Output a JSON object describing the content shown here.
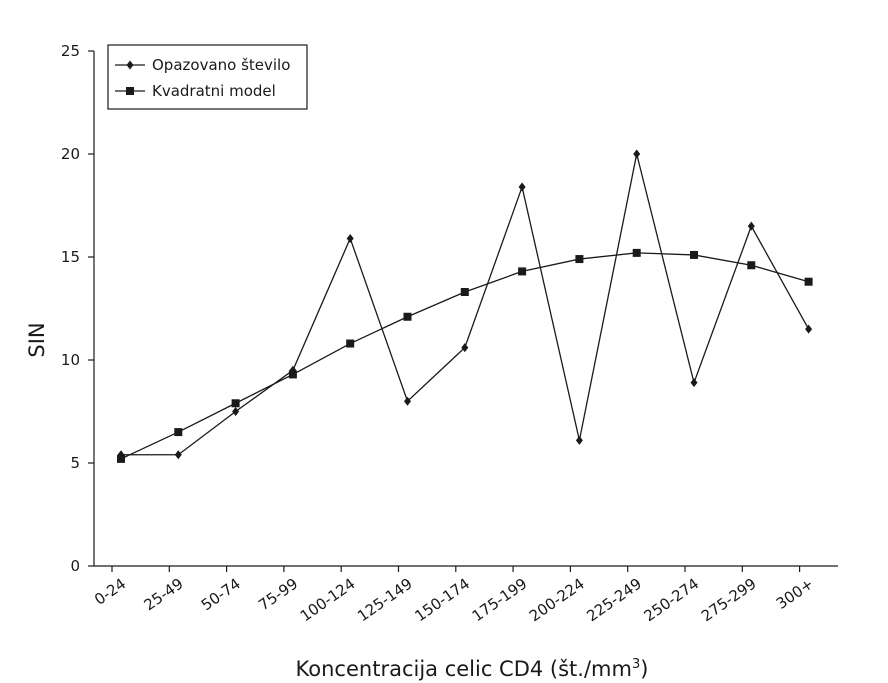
{
  "chart_data": {
    "type": "line",
    "title": "",
    "xlabel": "Koncentracija celic CD4 (št./mm",
    "xlabel_superscript": "3",
    "xlabel_suffix": ")",
    "ylabel": "SIN",
    "ylim": [
      0,
      25
    ],
    "yticks": [
      0,
      5,
      10,
      15,
      20,
      25
    ],
    "categories": [
      "0-24",
      "25-49",
      "50-74",
      "75-99",
      "100-124",
      "125-149",
      "150-174",
      "175-199",
      "200-224",
      "225-249",
      "250-274",
      "275-299",
      "300+"
    ],
    "legend_position": "top-left",
    "grid": false,
    "series": [
      {
        "name": "Opazovano število",
        "marker": "diamond",
        "color": "#1a1a1a",
        "values": [
          5.4,
          5.4,
          7.5,
          9.5,
          15.9,
          8.0,
          10.6,
          18.4,
          6.1,
          20.0,
          8.9,
          16.5,
          11.5
        ]
      },
      {
        "name": "Kvadratni model",
        "marker": "square",
        "color": "#1a1a1a",
        "values": [
          5.2,
          6.5,
          7.9,
          9.3,
          10.8,
          12.1,
          13.3,
          14.3,
          14.9,
          15.2,
          15.1,
          14.6,
          13.8
        ]
      }
    ]
  }
}
